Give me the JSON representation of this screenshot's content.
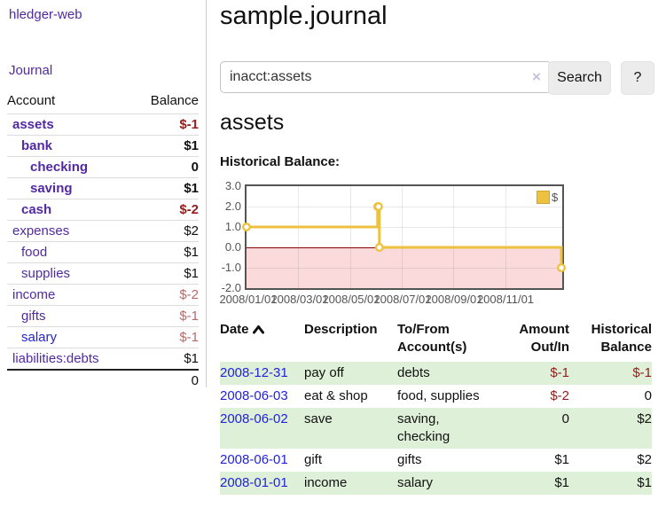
{
  "colors": {
    "link_purple": "#5229a3",
    "link_blue": "#2323d8",
    "negative_strong": "#941c1c",
    "negative_soft": "#b56a6a",
    "row_stripe_green": "#dff0d8",
    "series_yellow": "#edc240",
    "negative_region_pink": "#fadada",
    "zero_line_red": "#8b0000",
    "button_gray": "#ececec"
  },
  "sidebar": {
    "app_title": "hledger-web",
    "journal_label": "Journal",
    "accounts_table": {
      "headers": {
        "account": "Account",
        "balance": "Balance"
      },
      "rows": [
        {
          "name": "assets",
          "balance": "$-1",
          "depth": 1,
          "bold": true,
          "balance_class": "neg-strong"
        },
        {
          "name": "bank",
          "balance": "$1",
          "depth": 2,
          "bold": true,
          "balance_class": ""
        },
        {
          "name": "checking",
          "balance": "0",
          "depth": 3,
          "bold": true,
          "balance_class": ""
        },
        {
          "name": "saving",
          "balance": "$1",
          "depth": 3,
          "bold": true,
          "balance_class": ""
        },
        {
          "name": "cash",
          "balance": "$-2",
          "depth": 2,
          "bold": true,
          "balance_class": "neg-strong"
        },
        {
          "name": "expenses",
          "balance": "$2",
          "depth": 1,
          "bold": false,
          "balance_class": ""
        },
        {
          "name": "food",
          "balance": "$1",
          "depth": 2,
          "bold": false,
          "balance_class": ""
        },
        {
          "name": "supplies",
          "balance": "$1",
          "depth": 2,
          "bold": false,
          "balance_class": ""
        },
        {
          "name": "income",
          "balance": "$-2",
          "depth": 1,
          "bold": false,
          "balance_class": "neg-soft"
        },
        {
          "name": "gifts",
          "balance": "$-1",
          "depth": 2,
          "bold": false,
          "balance_class": "neg-soft"
        },
        {
          "name": "salary",
          "balance": "$-1",
          "depth": 2,
          "bold": false,
          "balance_class": "neg-soft",
          "link": "blue"
        },
        {
          "name": "liabilities:debts",
          "balance": "$1",
          "depth": 1,
          "bold": false,
          "balance_class": ""
        }
      ],
      "total": "0"
    }
  },
  "main": {
    "title": "sample.journal",
    "search": {
      "value": "inacct:assets",
      "clear_icon": "×",
      "button_label": "Search",
      "help_label": "?"
    },
    "account_heading": "assets",
    "chart_label": "Historical Balance:"
  },
  "chart_data": {
    "type": "line",
    "title": "Historical Balance:",
    "x_start": "2008-01-01",
    "x_end": "2009-01-01",
    "ylim": [
      -2,
      3
    ],
    "yticks": [
      "3.0",
      "2.0",
      "1.0",
      "0.0",
      "-1.0",
      "-2.0"
    ],
    "xticks": [
      "2008/01/01",
      "2008/03/01",
      "2008/05/01",
      "2008/07/01",
      "2008/09/01",
      "2008/11/01"
    ],
    "grid": true,
    "legend_position": "top-right",
    "series": [
      {
        "name": "$",
        "color": "#edc240",
        "steps": true,
        "points": [
          {
            "date": "2008-01-01",
            "value": 1
          },
          {
            "date": "2008-06-01",
            "value": 2
          },
          {
            "date": "2008-06-02",
            "value": 2
          },
          {
            "date": "2008-06-03",
            "value": 0
          },
          {
            "date": "2008-12-31",
            "value": -1
          }
        ]
      }
    ]
  },
  "register_table": {
    "headers": {
      "date": "Date",
      "description": "Description",
      "accounts": "To/From Account(s)",
      "amount": "Amount Out/In",
      "balance": "Historical Balance"
    },
    "rows": [
      {
        "date": "2008-12-31",
        "description": "pay off",
        "accounts": "debts",
        "amount": "$-1",
        "amount_neg": true,
        "balance": "$-1",
        "balance_neg": true,
        "green": true
      },
      {
        "date": "2008-06-03",
        "description": "eat & shop",
        "accounts": "food, supplies",
        "amount": "$-2",
        "amount_neg": true,
        "balance": "0",
        "balance_neg": false,
        "green": false
      },
      {
        "date": "2008-06-02",
        "description": "save",
        "accounts": "saving, checking",
        "amount": "0",
        "amount_neg": false,
        "balance": "$2",
        "balance_neg": false,
        "green": true
      },
      {
        "date": "2008-06-01",
        "description": "gift",
        "accounts": "gifts",
        "amount": "$1",
        "amount_neg": false,
        "balance": "$2",
        "balance_neg": false,
        "green": false
      },
      {
        "date": "2008-01-01",
        "description": "income",
        "accounts": "salary",
        "amount": "$1",
        "amount_neg": false,
        "balance": "$1",
        "balance_neg": false,
        "green": true
      }
    ]
  }
}
